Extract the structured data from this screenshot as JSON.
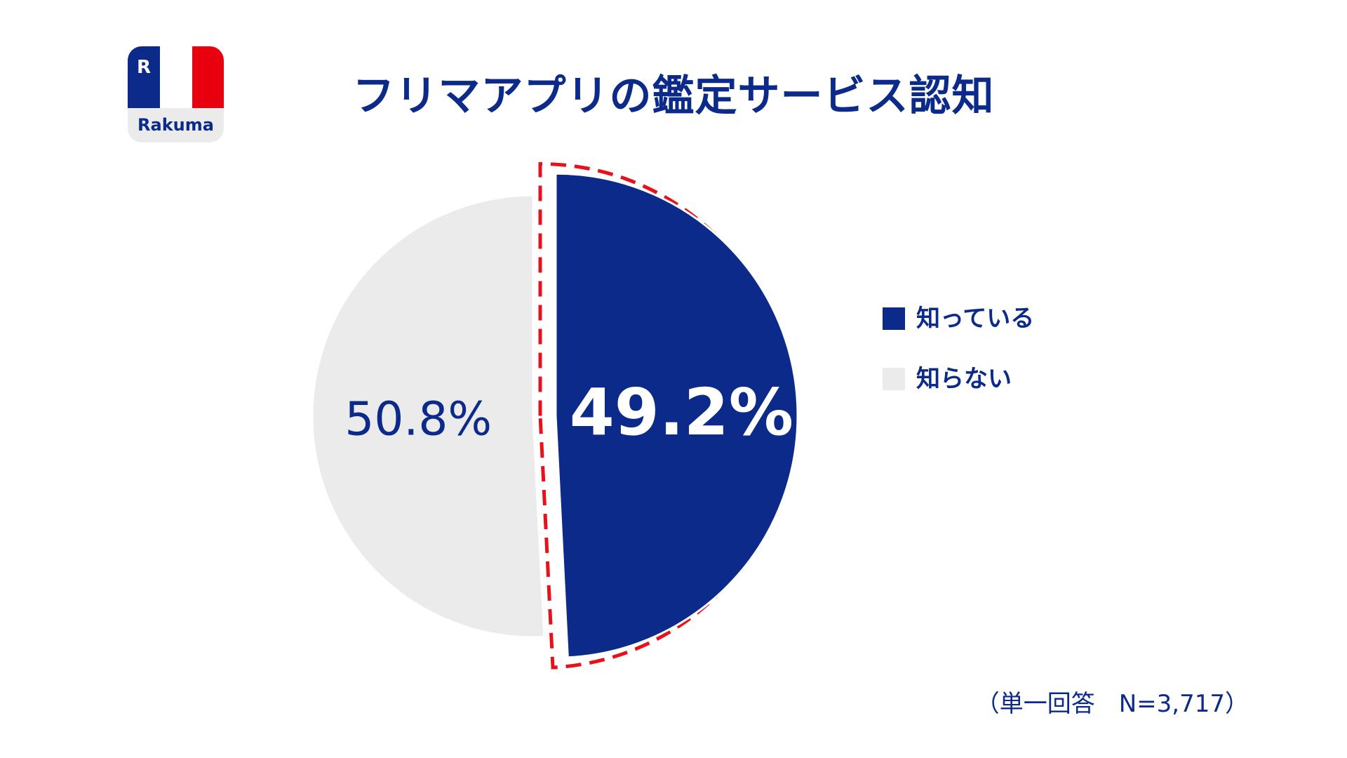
{
  "logo": {
    "text": "Rakuma",
    "mark": "R",
    "colors": {
      "blue": "#0b2a8a",
      "white": "#ffffff",
      "red": "#e8000f"
    }
  },
  "title": "フリマアプリの鑑定サービス認知",
  "chart_data": {
    "type": "pie",
    "title": "フリマアプリの鑑定サービス認知",
    "slices": [
      {
        "label": "知っている",
        "value": 49.2,
        "display": "49.2%",
        "color": "#0b2a8a",
        "highlighted": true
      },
      {
        "label": "知らない",
        "value": 50.8,
        "display": "50.8%",
        "color": "#ebebeb",
        "highlighted": false
      }
    ],
    "legend_position": "right",
    "note": "（単一回答　N=3,717）"
  },
  "colors": {
    "accent": "#0b2a8a",
    "highlight_outline": "#e8101a",
    "muted": "#ebebeb"
  }
}
